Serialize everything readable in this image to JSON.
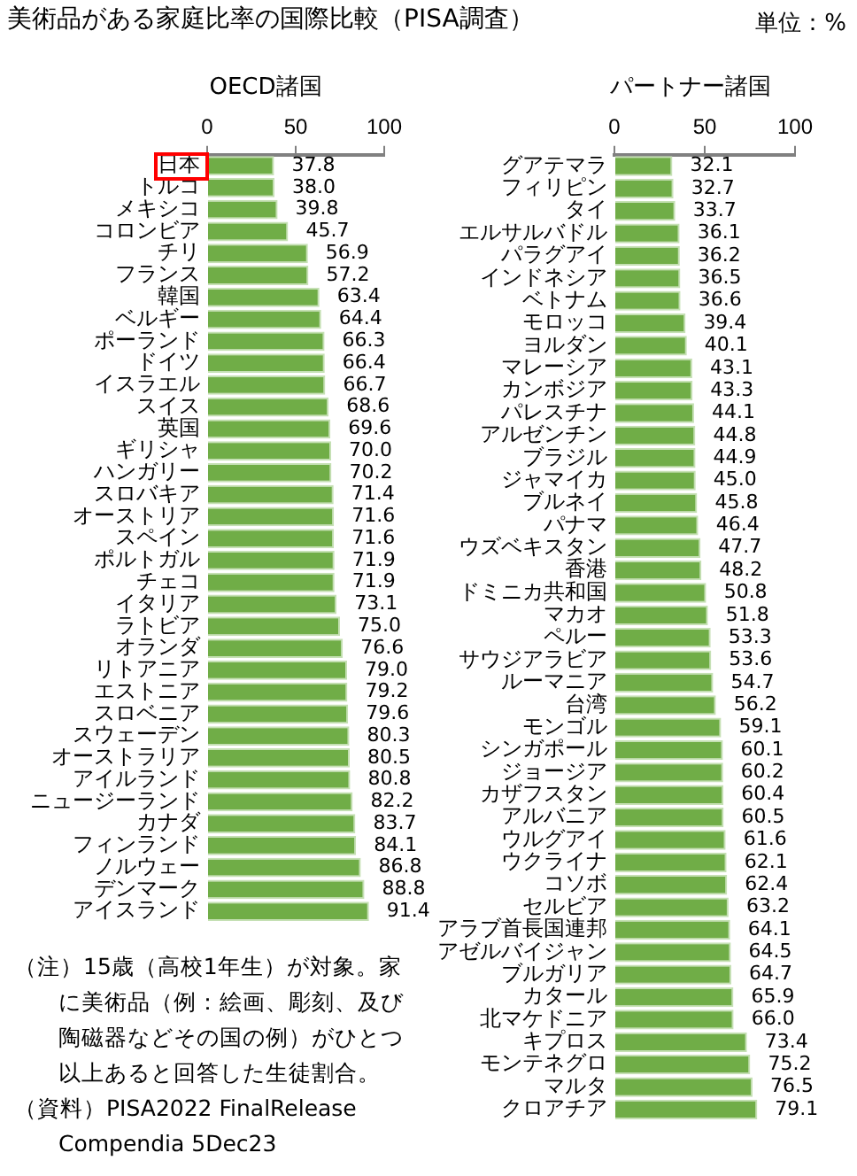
{
  "chart_data": [
    {
      "type": "bar",
      "orientation": "horizontal",
      "title": "美術品がある家庭比率の国際比較（PISA調査）",
      "subtitle": "OECD諸国",
      "color": "#70ad47",
      "xlim": [
        0,
        100
      ],
      "xticks": [
        0,
        50,
        100
      ],
      "value_labels": [
        "37.8",
        "38.0",
        "39.8",
        "45.7",
        "56.9",
        "57.2",
        "63.4",
        "64.4",
        "66.3",
        "66.4",
        "66.7",
        "68.6",
        "69.6",
        "70.0",
        "70.2",
        "71.4",
        "71.6",
        "71.6",
        "71.9",
        "71.9",
        "73.1",
        "75.0",
        "76.6",
        "79.0",
        "79.2",
        "79.6",
        "80.3",
        "80.5",
        "80.8",
        "82.2",
        "83.7",
        "84.1",
        "86.8",
        "88.8",
        "91.4"
      ],
      "categories": [
        "日本",
        "トルコ",
        "メキシコ",
        "コロンビア",
        "チリ",
        "フランス",
        "韓国",
        "ベルギー",
        "ポーランド",
        "ドイツ",
        "イスラエル",
        "スイス",
        "英国",
        "ギリシャ",
        "ハンガリー",
        "スロバキア",
        "オーストリア",
        "スペイン",
        "ポルトガル",
        "チェコ",
        "イタリア",
        "ラトビア",
        "オランダ",
        "リトアニア",
        "エストニア",
        "スロベニア",
        "スウェーデン",
        "オーストラリア",
        "アイルランド",
        "ニュージーランド",
        "カナダ",
        "フィンランド",
        "ノルウェー",
        "デンマーク",
        "アイスランド"
      ],
      "values": [
        37.8,
        38.0,
        39.8,
        45.7,
        56.9,
        57.2,
        63.4,
        64.4,
        66.3,
        66.4,
        66.7,
        68.6,
        69.6,
        70.0,
        70.2,
        71.4,
        71.6,
        71.6,
        71.9,
        71.9,
        73.1,
        75.0,
        76.6,
        79.0,
        79.2,
        79.6,
        80.3,
        80.5,
        80.8,
        82.2,
        83.7,
        84.1,
        86.8,
        88.8,
        91.4
      ],
      "annotations": [
        "（注）15歳（高校1年生）が対象。家に美術品（例：絵画、彫刻、及び陶磁器などその国の例）がひとつ以上あると回答した生徒割合。",
        "（資料）PISA2022 FinalRelease Compendia 5Dec23"
      ]
    },
    {
      "type": "bar",
      "orientation": "horizontal",
      "subtitle": "パートナー諸国",
      "color": "#70ad47",
      "xlim": [
        0,
        100
      ],
      "xticks": [
        0,
        50,
        100
      ],
      "value_labels": [
        "32.1",
        "32.7",
        "33.7",
        "36.1",
        "36.2",
        "36.5",
        "36.6",
        "39.4",
        "40.1",
        "43.1",
        "43.3",
        "44.1",
        "44.8",
        "44.9",
        "45.0",
        "45.8",
        "46.4",
        "47.7",
        "48.2",
        "50.8",
        "51.8",
        "53.3",
        "53.6",
        "54.7",
        "56.2",
        "59.1",
        "60.1",
        "60.2",
        "60.4",
        "60.5",
        "61.6",
        "62.1",
        "62.4",
        "63.2",
        "64.1",
        "64.5",
        "64.7",
        "65.9",
        "66.0",
        "73.4",
        "75.2",
        "76.5",
        "79.1"
      ],
      "categories": [
        "グアテマラ",
        "フィリピン",
        "タイ",
        "エルサルバドル",
        "パラグアイ",
        "インドネシア",
        "ベトナム",
        "モロッコ",
        "ヨルダン",
        "マレーシア",
        "カンボジア",
        "パレスチナ",
        "アルゼンチン",
        "ブラジル",
        "ジャマイカ",
        "ブルネイ",
        "パナマ",
        "ウズベキスタン",
        "香港",
        "ドミニカ共和国",
        "マカオ",
        "ペルー",
        "サウジアラビア",
        "ルーマニア",
        "台湾",
        "モンゴル",
        "シンガポール",
        "ジョージア",
        "カザフスタン",
        "アルバニア",
        "ウルグアイ",
        "ウクライナ",
        "コソボ",
        "セルビア",
        "アラブ首長国連邦",
        "アゼルバイジャン",
        "ブルガリア",
        "カタール",
        "北マケドニア",
        "キプロス",
        "モンテネグロ",
        "マルタ",
        "クロアチア"
      ],
      "values": [
        32.1,
        32.7,
        33.7,
        36.1,
        36.2,
        36.5,
        36.6,
        39.4,
        40.1,
        43.1,
        43.3,
        44.1,
        44.8,
        44.9,
        45.0,
        45.8,
        46.4,
        47.7,
        48.2,
        50.8,
        51.8,
        53.3,
        53.6,
        54.7,
        56.2,
        59.1,
        60.1,
        60.2,
        60.4,
        60.5,
        61.6,
        62.1,
        62.4,
        63.2,
        64.1,
        64.5,
        64.7,
        65.9,
        66.0,
        73.4,
        75.2,
        76.5,
        79.1
      ],
      "annotations": [
        "単位：%"
      ]
    }
  ]
}
